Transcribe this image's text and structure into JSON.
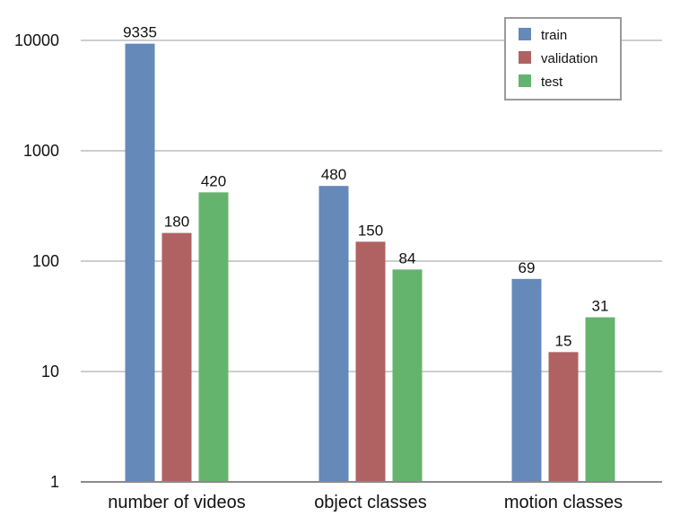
{
  "chart_data": {
    "type": "bar",
    "y_scale": "log",
    "ylim": [
      1,
      10000
    ],
    "y_ticks": [
      "1",
      "10",
      "100",
      "1000",
      "10000"
    ],
    "categories": [
      "number of videos",
      "object classes",
      "motion classes"
    ],
    "series": [
      {
        "name": "train",
        "color": "#6589b8",
        "values": [
          9335,
          480,
          69
        ]
      },
      {
        "name": "validation",
        "color": "#b06262",
        "values": [
          180,
          150,
          15
        ]
      },
      {
        "name": "test",
        "color": "#65b46d",
        "values": [
          420,
          84,
          31
        ]
      }
    ],
    "data_labels": [
      [
        "9335",
        "480",
        "69"
      ],
      [
        "180",
        "150",
        "15"
      ],
      [
        "420",
        "84",
        "31"
      ]
    ],
    "grid": true,
    "legend_position": "top-right"
  }
}
